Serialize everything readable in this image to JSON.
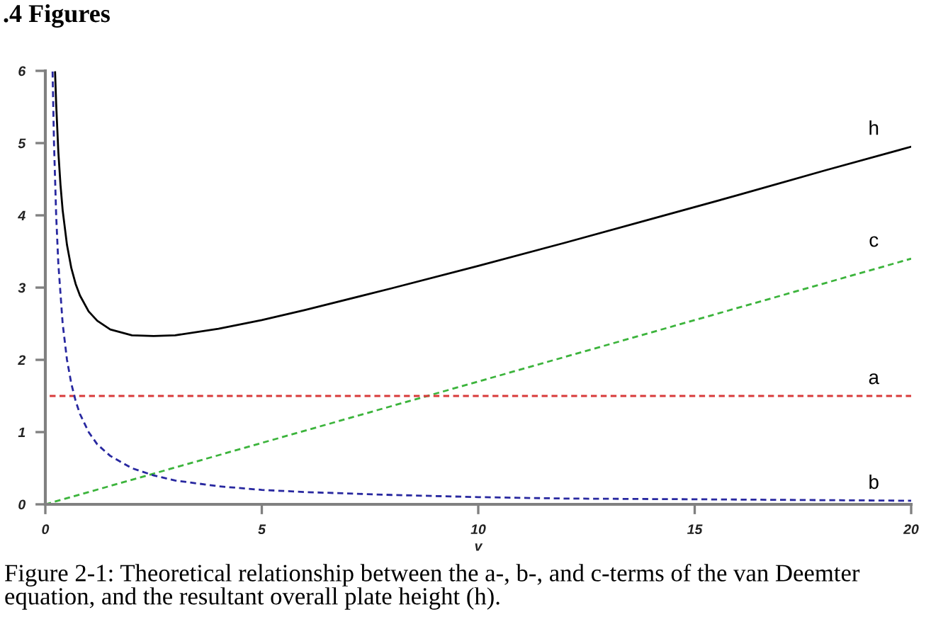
{
  "chart_data": {
    "type": "line",
    "title": ".4 Figures",
    "xlabel": "v",
    "annotations": [
      "Figure 2-1: Theoretical relationship between the a-, b-, and c-terms of the van Deemter equation, and the resultant overall plate height (h)."
    ],
    "xlim": [
      0,
      20
    ],
    "xticks": [
      0,
      5,
      10,
      15,
      20
    ],
    "ylim": [
      0,
      6
    ],
    "yticks": [
      0,
      1,
      2,
      3,
      4,
      5,
      6
    ],
    "series": [
      {
        "name": "h",
        "color": "#000000",
        "line_style": "solid",
        "x": [
          0.225,
          0.25,
          0.3,
          0.35,
          0.4,
          0.5,
          0.6,
          0.7,
          0.8,
          1,
          1.2,
          1.5,
          2,
          2.5,
          3,
          4,
          5,
          6,
          8,
          10,
          12,
          14,
          16,
          18,
          20
        ],
        "values": [
          5.98,
          5.54,
          4.88,
          4.42,
          4.07,
          3.59,
          3.27,
          3.05,
          2.89,
          2.67,
          2.54,
          2.42,
          2.34,
          2.33,
          2.34,
          2.43,
          2.55,
          2.69,
          2.99,
          3.3,
          3.62,
          3.95,
          4.28,
          4.62,
          4.95
        ]
      },
      {
        "name": "c",
        "color": "#3cb43c",
        "line_style": "dashed",
        "x": [
          0,
          20
        ],
        "values": [
          0,
          3.4
        ]
      },
      {
        "name": "a",
        "color": "#d83a3a",
        "line_style": "dashed",
        "x": [
          0.1,
          20
        ],
        "values": [
          1.5,
          1.5
        ]
      },
      {
        "name": "b",
        "color": "#2828a0",
        "line_style": "dashed",
        "x": [
          0.167,
          0.2,
          0.25,
          0.3,
          0.4,
          0.5,
          0.6,
          0.7,
          0.8,
          1,
          1.2,
          1.5,
          2,
          2.5,
          3,
          4,
          5,
          6,
          8,
          10,
          12,
          15,
          20
        ],
        "values": [
          5.99,
          5,
          4,
          3.33,
          2.5,
          2,
          1.67,
          1.43,
          1.25,
          1,
          0.83,
          0.67,
          0.5,
          0.4,
          0.33,
          0.25,
          0.2,
          0.17,
          0.13,
          0.1,
          0.08,
          0.07,
          0.05
        ]
      }
    ]
  }
}
